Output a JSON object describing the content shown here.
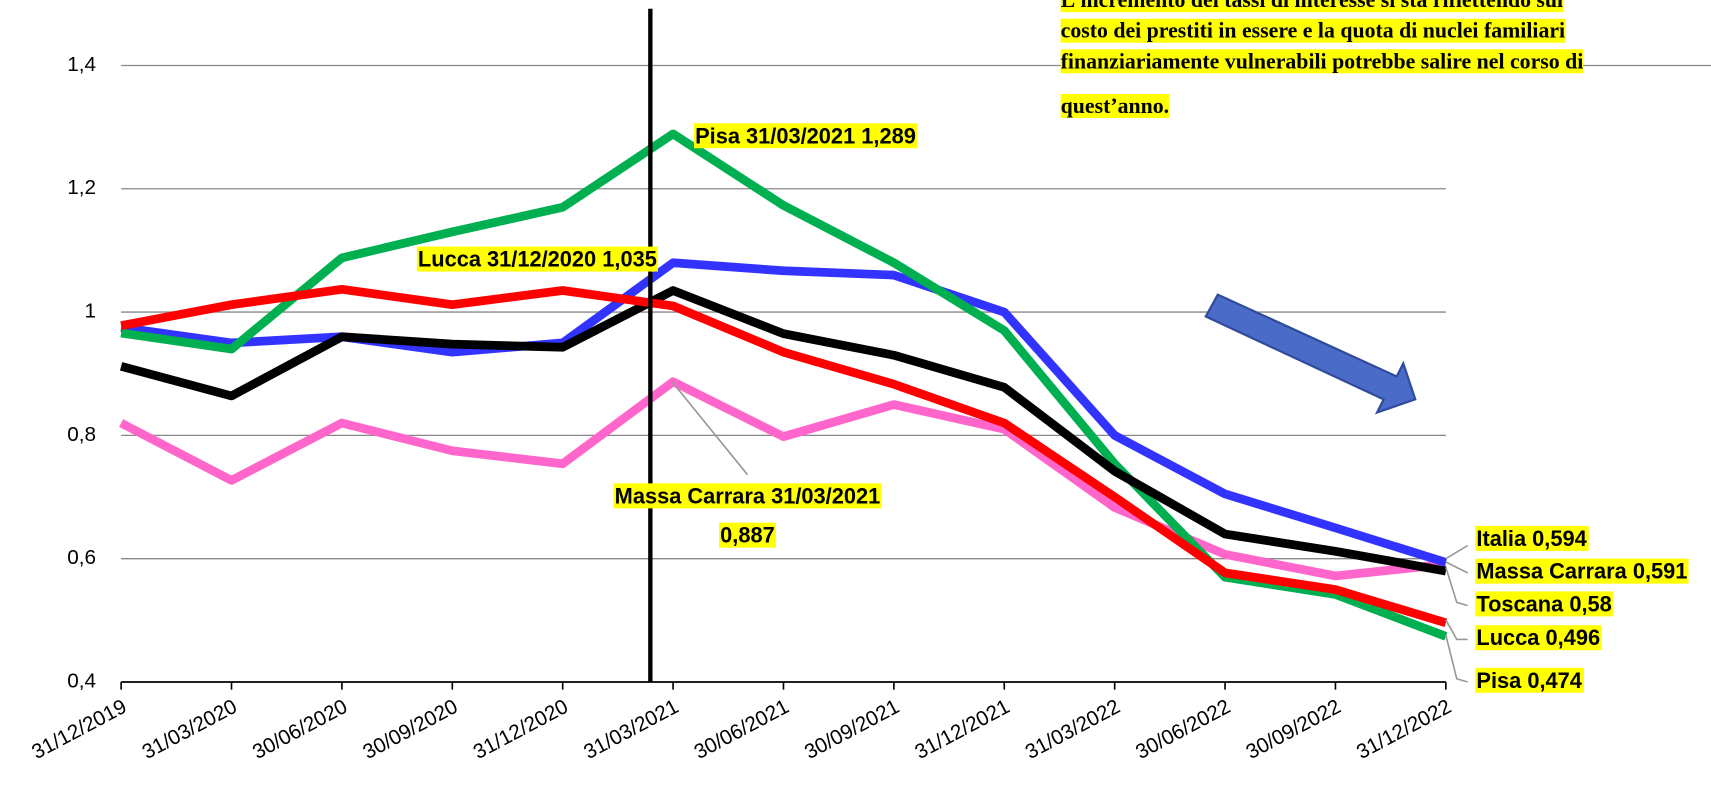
{
  "chart_data": {
    "type": "line",
    "categories": [
      "31/12/2019",
      "31/03/2020",
      "30/06/2020",
      "30/09/2020",
      "31/12/2020",
      "31/03/2021",
      "30/06/2021",
      "30/09/2021",
      "31/12/2021",
      "31/03/2022",
      "30/06/2022",
      "30/09/2022",
      "31/12/2022"
    ],
    "series": [
      {
        "name": "Massa Carrara",
        "color": "#ff66cc",
        "values": [
          0.82,
          0.727,
          0.82,
          0.775,
          0.754,
          0.887,
          0.798,
          0.85,
          0.81,
          0.683,
          0.607,
          0.572,
          0.591
        ]
      },
      {
        "name": "Italia",
        "color": "#3333ff",
        "values": [
          0.975,
          0.95,
          0.96,
          0.935,
          0.95,
          1.08,
          1.067,
          1.06,
          1.0,
          0.8,
          0.705,
          0.65,
          0.594
        ]
      },
      {
        "name": "Pisa",
        "color": "#00b050",
        "values": [
          0.966,
          0.94,
          1.088,
          1.13,
          1.17,
          1.289,
          1.173,
          1.08,
          0.97,
          0.754,
          0.57,
          0.542,
          0.474
        ]
      },
      {
        "name": "Toscana",
        "color": "#000000",
        "values": [
          0.912,
          0.864,
          0.96,
          0.948,
          0.943,
          1.035,
          0.965,
          0.93,
          0.878,
          0.742,
          0.64,
          0.612,
          0.58
        ]
      },
      {
        "name": "Lucca",
        "color": "#ff0000",
        "values": [
          0.978,
          1.012,
          1.037,
          1.012,
          1.035,
          1.01,
          0.935,
          0.883,
          0.82,
          0.7,
          0.577,
          0.55,
          0.496
        ]
      }
    ],
    "ylim": [
      0.4,
      1.5
    ],
    "yticks": [
      {
        "value": 0.4,
        "label": "0,4"
      },
      {
        "value": 0.6,
        "label": "0,6"
      },
      {
        "value": 0.8,
        "label": "0,8"
      },
      1,
      {
        "value": 1.2,
        "label": "1,2"
      },
      {
        "value": 1.4,
        "label": "1,4"
      }
    ],
    "grid": true,
    "annotations": [
      "Pisa 31/03/2021 1,289",
      "Lucca 31/12/2020 1,035",
      "Massa Carrara 31/03/2021",
      "0,887",
      "Italia 0,594",
      "Massa Carrara 0,591",
      "Toscana 0,58",
      "Lucca 0,496",
      "Pisa 0,474"
    ],
    "note": [
      "L’incremento dei tassi di interesse si sta riflettendo sul",
      "costo dei prestiti in essere e la quota di nuclei familiari",
      "finanziariamente vulnerabili potrebbe salire nel corso di",
      "quest’anno."
    ]
  }
}
